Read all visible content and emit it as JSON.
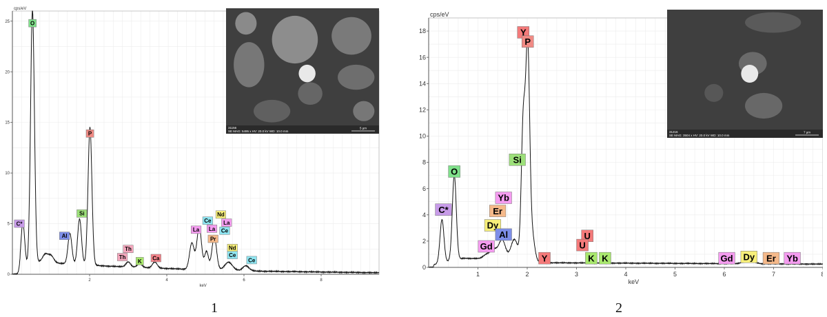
{
  "colors": {
    "O": "#7fe08a",
    "P": "#f08a84",
    "Si": "#9de07a",
    "Al": "#7d8ee8",
    "C*": "#c79be8",
    "Th": "#f5a7bd",
    "K": "#a9e86e",
    "Ca": "#f5838a",
    "La": "#f59cf0",
    "Ce": "#8fe6f2",
    "Pr": "#f5b98a",
    "Nd": "#f7ef7a",
    "Y": "#f47a7a",
    "Yb": "#f59cf0",
    "Er": "#f5b98a",
    "Dy": "#f7ef7a",
    "Gd": "#f59cf0",
    "U": "#f47a7a"
  },
  "chart_data": [
    {
      "type": "line",
      "panel_label": "1",
      "ylabel": "cps/eV",
      "xlabel": "keV",
      "xlim": [
        0,
        9.5
      ],
      "ylim": [
        0,
        26
      ],
      "xticks": [
        2,
        4,
        6,
        8
      ],
      "yticks": [
        0,
        5,
        10,
        15,
        20,
        25
      ],
      "grid": true,
      "peaks": [
        {
          "x": 0.27,
          "y": 4.6,
          "w": 0.05
        },
        {
          "x": 0.52,
          "y": 25.2,
          "w": 0.05
        },
        {
          "x": 0.85,
          "y": 0.8,
          "w": 0.07
        },
        {
          "x": 1.0,
          "y": 0.7,
          "w": 0.07
        },
        {
          "x": 1.49,
          "y": 3.0,
          "w": 0.05
        },
        {
          "x": 1.74,
          "y": 4.5,
          "w": 0.05
        },
        {
          "x": 2.01,
          "y": 13.6,
          "w": 0.05
        },
        {
          "x": 3.0,
          "y": 0.5,
          "w": 0.06
        },
        {
          "x": 3.3,
          "y": 0.4,
          "w": 0.06
        },
        {
          "x": 3.69,
          "y": 0.6,
          "w": 0.06
        },
        {
          "x": 4.65,
          "y": 2.6,
          "w": 0.06
        },
        {
          "x": 4.84,
          "y": 4.2,
          "w": 0.06
        },
        {
          "x": 5.03,
          "y": 1.8,
          "w": 0.05
        },
        {
          "x": 5.23,
          "y": 3.3,
          "w": 0.06
        },
        {
          "x": 5.6,
          "y": 0.8,
          "w": 0.1
        },
        {
          "x": 6.05,
          "y": 0.5,
          "w": 0.08
        }
      ],
      "background": [
        [
          0.2,
          0.3
        ],
        [
          0.7,
          1.2
        ],
        [
          2.5,
          0.8
        ],
        [
          4.5,
          0.5
        ],
        [
          6.5,
          0.3
        ],
        [
          9.5,
          0.15
        ]
      ],
      "labels": [
        {
          "text": "O",
          "x": 0.52,
          "y": 24.8
        },
        {
          "text": "P",
          "x": 2.01,
          "y": 13.9
        },
        {
          "text": "C*",
          "x": 0.18,
          "y": 5.0
        },
        {
          "text": "Al",
          "x": 1.35,
          "y": 3.8
        },
        {
          "text": "Si",
          "x": 1.8,
          "y": 6.0
        },
        {
          "text": "Th",
          "x": 3.0,
          "y": 2.5
        },
        {
          "text": "Th",
          "x": 2.85,
          "y": 1.7
        },
        {
          "text": "K",
          "x": 3.3,
          "y": 1.3
        },
        {
          "text": "Ca",
          "x": 3.72,
          "y": 1.6
        },
        {
          "text": "La",
          "x": 4.76,
          "y": 4.4
        },
        {
          "text": "Ce",
          "x": 5.06,
          "y": 5.3
        },
        {
          "text": "La",
          "x": 5.17,
          "y": 4.5
        },
        {
          "text": "Nd",
          "x": 5.4,
          "y": 5.9
        },
        {
          "text": "La",
          "x": 5.55,
          "y": 5.1
        },
        {
          "text": "Ce",
          "x": 5.5,
          "y": 4.3
        },
        {
          "text": "Pr",
          "x": 5.2,
          "y": 3.5
        },
        {
          "text": "Nd",
          "x": 5.7,
          "y": 2.6
        },
        {
          "text": "Ce",
          "x": 5.7,
          "y": 1.9
        },
        {
          "text": "Ce",
          "x": 6.2,
          "y": 1.4
        }
      ],
      "inset": {
        "scale_bar": "5 µm",
        "id": "31156",
        "info": "SE  MAG: 5495 x  HV: 20.0 kV  WD: 10.0 mm"
      }
    },
    {
      "type": "line",
      "panel_label": "2",
      "ylabel": "cps/eV",
      "xlabel": "keV",
      "xlim": [
        0,
        8
      ],
      "ylim": [
        0,
        19
      ],
      "xticks": [
        1,
        2,
        3,
        4,
        5,
        6,
        7,
        8
      ],
      "yticks": [
        0,
        2,
        4,
        6,
        8,
        10,
        12,
        14,
        16,
        18
      ],
      "grid": true,
      "peaks": [
        {
          "x": 0.27,
          "y": 3.3,
          "w": 0.04
        },
        {
          "x": 0.52,
          "y": 6.5,
          "w": 0.04
        },
        {
          "x": 1.2,
          "y": 0.4,
          "w": 0.08
        },
        {
          "x": 1.33,
          "y": 0.6,
          "w": 0.06
        },
        {
          "x": 1.49,
          "y": 1.5,
          "w": 0.07
        },
        {
          "x": 1.74,
          "y": 1.6,
          "w": 0.07
        },
        {
          "x": 1.92,
          "y": 10.5,
          "w": 0.04
        },
        {
          "x": 2.01,
          "y": 15.8,
          "w": 0.04
        },
        {
          "x": 2.1,
          "y": 2.0,
          "w": 0.05
        },
        {
          "x": 6.5,
          "y": 0.3,
          "w": 0.1
        }
      ],
      "background": [
        [
          0.1,
          0.2
        ],
        [
          0.7,
          0.7
        ],
        [
          1.5,
          0.6
        ],
        [
          2.5,
          0.35
        ],
        [
          8,
          0.25
        ]
      ],
      "labels": [
        {
          "text": "Y",
          "x": 1.92,
          "y": 17.9
        },
        {
          "text": "P",
          "x": 2.01,
          "y": 17.2
        },
        {
          "text": "O",
          "x": 0.52,
          "y": 7.3
        },
        {
          "text": "Si",
          "x": 1.8,
          "y": 8.2
        },
        {
          "text": "C*",
          "x": 0.3,
          "y": 4.4
        },
        {
          "text": "Yb",
          "x": 1.52,
          "y": 5.3
        },
        {
          "text": "Er",
          "x": 1.4,
          "y": 4.3
        },
        {
          "text": "Dy",
          "x": 1.3,
          "y": 3.2
        },
        {
          "text": "Al",
          "x": 1.52,
          "y": 2.5
        },
        {
          "text": "Gd",
          "x": 1.17,
          "y": 1.6
        },
        {
          "text": "Y",
          "x": 2.35,
          "y": 0.7
        },
        {
          "text": "U",
          "x": 3.22,
          "y": 2.4
        },
        {
          "text": "U",
          "x": 3.12,
          "y": 1.7
        },
        {
          "text": "K",
          "x": 3.3,
          "y": 0.7
        },
        {
          "text": "K",
          "x": 3.58,
          "y": 0.7
        },
        {
          "text": "Gd",
          "x": 6.05,
          "y": 0.7
        },
        {
          "text": "Dy",
          "x": 6.5,
          "y": 0.8
        },
        {
          "text": "Er",
          "x": 6.95,
          "y": 0.7
        },
        {
          "text": "Yb",
          "x": 7.38,
          "y": 0.7
        }
      ],
      "inset": {
        "scale_bar": "7 µm",
        "id": "31216",
        "info": "SE  MAG: 3504 x  HV: 20.0 kV  WD: 10.0 mm"
      }
    }
  ]
}
